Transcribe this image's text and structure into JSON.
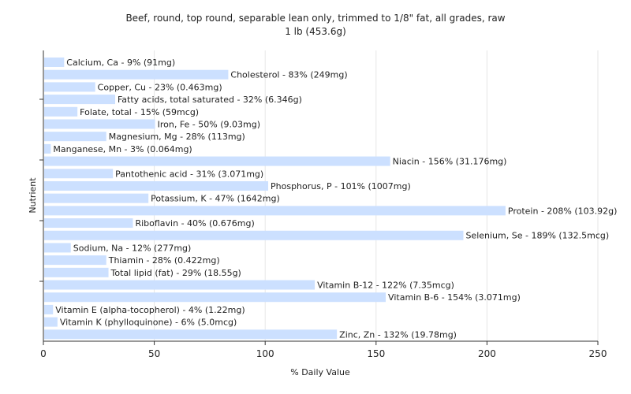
{
  "chart_data": {
    "type": "bar",
    "orientation": "horizontal",
    "title": "Beef, round, top round, separable lean only, trimmed to 1/8\" fat, all grades, raw",
    "subtitle": "1 lb (453.6g)",
    "xlabel": "% Daily Value",
    "ylabel": "Nutrient",
    "xlim": [
      0,
      250
    ],
    "xticks": [
      0,
      50,
      100,
      150,
      200,
      250
    ],
    "grid": true,
    "bar_color": "#cce0ff",
    "categories": [
      "Calcium, Ca",
      "Cholesterol",
      "Copper, Cu",
      "Fatty acids, total saturated",
      "Folate, total",
      "Iron, Fe",
      "Magnesium, Mg",
      "Manganese, Mn",
      "Niacin",
      "Pantothenic acid",
      "Phosphorus, P",
      "Potassium, K",
      "Protein",
      "Riboflavin",
      "Selenium, Se",
      "Sodium, Na",
      "Thiamin",
      "Total lipid (fat)",
      "Vitamin B-12",
      "Vitamin B-6",
      "Vitamin E (alpha-tocopherol)",
      "Vitamin K (phylloquinone)",
      "Zinc, Zn"
    ],
    "values": [
      9,
      83,
      23,
      32,
      15,
      50,
      28,
      3,
      156,
      31,
      101,
      47,
      208,
      40,
      189,
      12,
      28,
      29,
      122,
      154,
      4,
      6,
      132
    ],
    "labels": [
      "Calcium, Ca - 9% (91mg)",
      "Cholesterol - 83% (249mg)",
      "Copper, Cu - 23% (0.463mg)",
      "Fatty acids, total saturated - 32% (6.346g)",
      "Folate, total - 15% (59mcg)",
      "Iron, Fe - 50% (9.03mg)",
      "Magnesium, Mg - 28% (113mg)",
      "Manganese, Mn - 3% (0.064mg)",
      "Niacin - 156% (31.176mg)",
      "Pantothenic acid - 31% (3.071mg)",
      "Phosphorus, P - 101% (1007mg)",
      "Potassium, K - 47% (1642mg)",
      "Protein - 208% (103.92g)",
      "Riboflavin - 40% (0.676mg)",
      "Selenium, Se - 189% (132.5mcg)",
      "Sodium, Na - 12% (277mg)",
      "Thiamin - 28% (0.422mg)",
      "Total lipid (fat) - 29% (18.55g)",
      "Vitamin B-12 - 122% (7.35mcg)",
      "Vitamin B-6 - 154% (3.071mg)",
      "Vitamin E (alpha-tocopherol) - 4% (1.22mg)",
      "Vitamin K (phylloquinone) - 6% (5.0mcg)",
      "Zinc, Zn - 132% (19.78mg)"
    ]
  }
}
